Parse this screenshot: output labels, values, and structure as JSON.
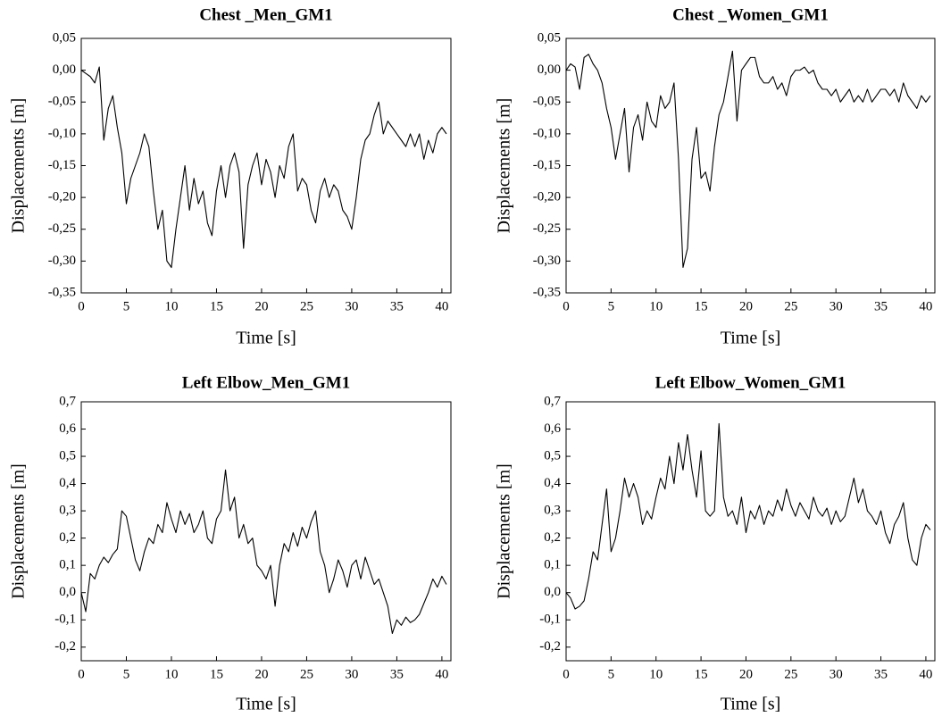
{
  "chart_data": [
    {
      "type": "line",
      "title": "Chest _Men_GM1",
      "x_label": "Time [s]",
      "y_label": "Displacements [m]",
      "color": "#000000",
      "xlim": [
        0,
        41
      ],
      "ylim": [
        -0.35,
        0.05
      ],
      "xticks": [
        0,
        5,
        10,
        15,
        20,
        25,
        30,
        35,
        40
      ],
      "yticks": [
        {
          "value": 0.05,
          "label": "0,05"
        },
        {
          "value": 0,
          "label": "0,00"
        },
        {
          "value": -0.05,
          "label": "-0,05"
        },
        {
          "value": -0.1,
          "label": "-0,10"
        },
        {
          "value": -0.15,
          "label": "-0,15"
        },
        {
          "value": -0.2,
          "label": "-0,20"
        },
        {
          "value": -0.25,
          "label": "-0,25"
        },
        {
          "value": -0.3,
          "label": "-0,30"
        },
        {
          "value": -0.35,
          "label": "-0,35"
        }
      ],
      "x": [
        0,
        0.5,
        1,
        1.5,
        2,
        2.5,
        3,
        3.5,
        4,
        4.5,
        5,
        5.5,
        6,
        6.5,
        7,
        7.5,
        8,
        8.5,
        9,
        9.5,
        10,
        10.5,
        11,
        11.5,
        12,
        12.5,
        13,
        13.5,
        14,
        14.5,
        15,
        15.5,
        16,
        16.5,
        17,
        17.5,
        18,
        18.5,
        19,
        19.5,
        20,
        20.5,
        21,
        21.5,
        22,
        22.5,
        23,
        23.5,
        24,
        24.5,
        25,
        25.5,
        26,
        26.5,
        27,
        27.5,
        28,
        28.5,
        29,
        29.5,
        30,
        30.5,
        31,
        31.5,
        32,
        32.5,
        33,
        33.5,
        34,
        34.5,
        35,
        35.5,
        36,
        36.5,
        37,
        37.5,
        38,
        38.5,
        39,
        39.5,
        40,
        40.5
      ],
      "values": [
        0,
        -0.005,
        -0.01,
        -0.02,
        0.005,
        -0.11,
        -0.06,
        -0.04,
        -0.09,
        -0.13,
        -0.21,
        -0.17,
        -0.15,
        -0.13,
        -0.1,
        -0.12,
        -0.19,
        -0.25,
        -0.22,
        -0.3,
        -0.31,
        -0.25,
        -0.2,
        -0.15,
        -0.22,
        -0.17,
        -0.21,
        -0.19,
        -0.24,
        -0.26,
        -0.19,
        -0.15,
        -0.2,
        -0.15,
        -0.13,
        -0.16,
        -0.28,
        -0.18,
        -0.15,
        -0.13,
        -0.18,
        -0.14,
        -0.16,
        -0.2,
        -0.15,
        -0.17,
        -0.12,
        -0.1,
        -0.19,
        -0.17,
        -0.18,
        -0.22,
        -0.24,
        -0.19,
        -0.17,
        -0.2,
        -0.18,
        -0.19,
        -0.22,
        -0.23,
        -0.25,
        -0.2,
        -0.14,
        -0.11,
        -0.1,
        -0.07,
        -0.05,
        -0.1,
        -0.08,
        -0.09,
        -0.1,
        -0.11,
        -0.12,
        -0.1,
        -0.12,
        -0.1,
        -0.14,
        -0.11,
        -0.13,
        -0.1,
        -0.09,
        -0.1
      ]
    },
    {
      "type": "line",
      "title": "Chest _Women_GM1",
      "x_label": "Time [s]",
      "y_label": "Displacements [m]",
      "color": "#000000",
      "xlim": [
        0,
        41
      ],
      "ylim": [
        -0.35,
        0.05
      ],
      "xticks": [
        0,
        5,
        10,
        15,
        20,
        25,
        30,
        35,
        40
      ],
      "yticks": [
        {
          "value": 0.05,
          "label": "0,05"
        },
        {
          "value": 0,
          "label": "0,00"
        },
        {
          "value": -0.05,
          "label": "-0,05"
        },
        {
          "value": -0.1,
          "label": "-0,10"
        },
        {
          "value": -0.15,
          "label": "-0,15"
        },
        {
          "value": -0.2,
          "label": "-0,20"
        },
        {
          "value": -0.25,
          "label": "-0,25"
        },
        {
          "value": -0.3,
          "label": "-0,30"
        },
        {
          "value": -0.35,
          "label": "-0,35"
        }
      ],
      "x": [
        0,
        0.5,
        1,
        1.5,
        2,
        2.5,
        3,
        3.5,
        4,
        4.5,
        5,
        5.5,
        6,
        6.5,
        7,
        7.5,
        8,
        8.5,
        9,
        9.5,
        10,
        10.5,
        11,
        11.5,
        12,
        12.5,
        13,
        13.5,
        14,
        14.5,
        15,
        15.5,
        16,
        16.5,
        17,
        17.5,
        18,
        18.5,
        19,
        19.5,
        20,
        20.5,
        21,
        21.5,
        22,
        22.5,
        23,
        23.5,
        24,
        24.5,
        25,
        25.5,
        26,
        26.5,
        27,
        27.5,
        28,
        28.5,
        29,
        29.5,
        30,
        30.5,
        31,
        31.5,
        32,
        32.5,
        33,
        33.5,
        34,
        34.5,
        35,
        35.5,
        36,
        36.5,
        37,
        37.5,
        38,
        38.5,
        39,
        39.5,
        40,
        40.5
      ],
      "values": [
        0,
        0.01,
        0.005,
        -0.03,
        0.02,
        0.025,
        0.01,
        0,
        -0.02,
        -0.06,
        -0.09,
        -0.14,
        -0.1,
        -0.06,
        -0.16,
        -0.09,
        -0.07,
        -0.11,
        -0.05,
        -0.08,
        -0.09,
        -0.04,
        -0.06,
        -0.05,
        -0.02,
        -0.14,
        -0.31,
        -0.28,
        -0.14,
        -0.09,
        -0.17,
        -0.16,
        -0.19,
        -0.12,
        -0.07,
        -0.05,
        -0.01,
        0.03,
        -0.08,
        0,
        0.01,
        0.02,
        0.02,
        -0.01,
        -0.02,
        -0.02,
        -0.01,
        -0.03,
        -0.02,
        -0.04,
        -0.01,
        0,
        0,
        0.005,
        -0.005,
        0,
        -0.02,
        -0.03,
        -0.03,
        -0.04,
        -0.03,
        -0.05,
        -0.04,
        -0.03,
        -0.05,
        -0.04,
        -0.05,
        -0.03,
        -0.05,
        -0.04,
        -0.03,
        -0.03,
        -0.04,
        -0.03,
        -0.05,
        -0.02,
        -0.04,
        -0.05,
        -0.06,
        -0.04,
        -0.05,
        -0.04
      ]
    },
    {
      "type": "line",
      "title": "Left Elbow_Men_GM1",
      "x_label": "Time [s]",
      "y_label": "Displacements [m]",
      "color": "#000000",
      "xlim": [
        0,
        41
      ],
      "ylim": [
        -0.25,
        0.7
      ],
      "xticks": [
        0,
        5,
        10,
        15,
        20,
        25,
        30,
        35,
        40
      ],
      "yticks": [
        {
          "value": 0.7,
          "label": "0,7"
        },
        {
          "value": 0.6,
          "label": "0,6"
        },
        {
          "value": 0.5,
          "label": "0,5"
        },
        {
          "value": 0.4,
          "label": "0,4"
        },
        {
          "value": 0.3,
          "label": "0,3"
        },
        {
          "value": 0.2,
          "label": "0,2"
        },
        {
          "value": 0.1,
          "label": "0,1"
        },
        {
          "value": 0,
          "label": "0,0"
        },
        {
          "value": -0.1,
          "label": "-0,1"
        },
        {
          "value": -0.2,
          "label": "-0,2"
        }
      ],
      "x": [
        0,
        0.5,
        1,
        1.5,
        2,
        2.5,
        3,
        3.5,
        4,
        4.5,
        5,
        5.5,
        6,
        6.5,
        7,
        7.5,
        8,
        8.5,
        9,
        9.5,
        10,
        10.5,
        11,
        11.5,
        12,
        12.5,
        13,
        13.5,
        14,
        14.5,
        15,
        15.5,
        16,
        16.5,
        17,
        17.5,
        18,
        18.5,
        19,
        19.5,
        20,
        20.5,
        21,
        21.5,
        22,
        22.5,
        23,
        23.5,
        24,
        24.5,
        25,
        25.5,
        26,
        26.5,
        27,
        27.5,
        28,
        28.5,
        29,
        29.5,
        30,
        30.5,
        31,
        31.5,
        32,
        32.5,
        33,
        33.5,
        34,
        34.5,
        35,
        35.5,
        36,
        36.5,
        37,
        37.5,
        38,
        38.5,
        39,
        39.5,
        40,
        40.5
      ],
      "values": [
        0,
        -0.07,
        0.07,
        0.05,
        0.1,
        0.13,
        0.11,
        0.14,
        0.16,
        0.3,
        0.28,
        0.2,
        0.12,
        0.08,
        0.15,
        0.2,
        0.18,
        0.25,
        0.22,
        0.33,
        0.27,
        0.22,
        0.3,
        0.25,
        0.29,
        0.22,
        0.25,
        0.3,
        0.2,
        0.18,
        0.27,
        0.3,
        0.45,
        0.3,
        0.35,
        0.2,
        0.25,
        0.18,
        0.2,
        0.1,
        0.08,
        0.05,
        0.1,
        -0.05,
        0.1,
        0.18,
        0.15,
        0.22,
        0.17,
        0.24,
        0.2,
        0.26,
        0.3,
        0.15,
        0.1,
        0,
        0.05,
        0.12,
        0.08,
        0.02,
        0.1,
        0.12,
        0.05,
        0.13,
        0.08,
        0.03,
        0.05,
        0,
        -0.05,
        -0.15,
        -0.1,
        -0.12,
        -0.09,
        -0.11,
        -0.1,
        -0.08,
        -0.04,
        0,
        0.05,
        0.02,
        0.06,
        0.03
      ]
    },
    {
      "type": "line",
      "title": "Left Elbow_Women_GM1",
      "x_label": "Time [s]",
      "y_label": "Displacements [m]",
      "color": "#000000",
      "xlim": [
        0,
        41
      ],
      "ylim": [
        -0.25,
        0.7
      ],
      "xticks": [
        0,
        5,
        10,
        15,
        20,
        25,
        30,
        35,
        40
      ],
      "yticks": [
        {
          "value": 0.7,
          "label": "0,7"
        },
        {
          "value": 0.6,
          "label": "0,6"
        },
        {
          "value": 0.5,
          "label": "0,5"
        },
        {
          "value": 0.4,
          "label": "0,4"
        },
        {
          "value": 0.3,
          "label": "0,3"
        },
        {
          "value": 0.2,
          "label": "0,2"
        },
        {
          "value": 0.1,
          "label": "0,1"
        },
        {
          "value": 0,
          "label": "0,0"
        },
        {
          "value": -0.1,
          "label": "-0,1"
        },
        {
          "value": -0.2,
          "label": "-0,2"
        }
      ],
      "x": [
        0,
        0.5,
        1,
        1.5,
        2,
        2.5,
        3,
        3.5,
        4,
        4.5,
        5,
        5.5,
        6,
        6.5,
        7,
        7.5,
        8,
        8.5,
        9,
        9.5,
        10,
        10.5,
        11,
        11.5,
        12,
        12.5,
        13,
        13.5,
        14,
        14.5,
        15,
        15.5,
        16,
        16.5,
        17,
        17.5,
        18,
        18.5,
        19,
        19.5,
        20,
        20.5,
        21,
        21.5,
        22,
        22.5,
        23,
        23.5,
        24,
        24.5,
        25,
        25.5,
        26,
        26.5,
        27,
        27.5,
        28,
        28.5,
        29,
        29.5,
        30,
        30.5,
        31,
        31.5,
        32,
        32.5,
        33,
        33.5,
        34,
        34.5,
        35,
        35.5,
        36,
        36.5,
        37,
        37.5,
        38,
        38.5,
        39,
        39.5,
        40,
        40.5
      ],
      "values": [
        0,
        -0.02,
        -0.06,
        -0.05,
        -0.03,
        0.05,
        0.15,
        0.12,
        0.25,
        0.38,
        0.15,
        0.2,
        0.3,
        0.42,
        0.35,
        0.4,
        0.35,
        0.25,
        0.3,
        0.27,
        0.35,
        0.42,
        0.38,
        0.5,
        0.4,
        0.55,
        0.45,
        0.58,
        0.45,
        0.35,
        0.52,
        0.3,
        0.28,
        0.3,
        0.62,
        0.35,
        0.28,
        0.3,
        0.25,
        0.35,
        0.22,
        0.3,
        0.27,
        0.32,
        0.25,
        0.3,
        0.28,
        0.34,
        0.3,
        0.38,
        0.32,
        0.28,
        0.33,
        0.3,
        0.27,
        0.35,
        0.3,
        0.28,
        0.31,
        0.25,
        0.3,
        0.26,
        0.28,
        0.35,
        0.42,
        0.33,
        0.38,
        0.3,
        0.28,
        0.25,
        0.3,
        0.22,
        0.18,
        0.25,
        0.28,
        0.33,
        0.2,
        0.12,
        0.1,
        0.2,
        0.25,
        0.23
      ]
    }
  ]
}
